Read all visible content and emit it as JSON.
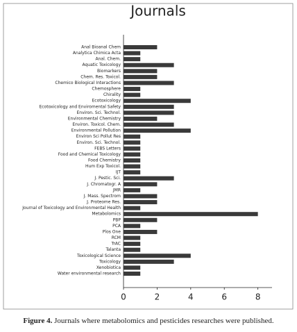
{
  "chart_data": {
    "type": "bar",
    "orientation": "horizontal",
    "title": "Journals",
    "categories": [
      "Anal Bioanal Chem",
      "Analytica Chimica Acta",
      "Anal. Chem.",
      "Aquatic Toxicology",
      "Biomarkers",
      "Chem. Res. Toxicol.",
      "Chemico  Biological Interactions",
      "Chemosphere",
      "Chirality",
      "Ecotoxicology",
      "Ecotoxicology and Enviromental Safety",
      "Environ. Sci. Technol.",
      "Environmental Chemistry",
      "Environ. Toxicol. Chem.",
      "Environmental Pollution",
      "Environ Sci Pollut Res",
      "Environ. Sci. Technol.",
      "FEBS Letters",
      "Food and Chemical Toxicology",
      "Food Chemistry",
      "Hum Exp Toxicol.",
      "IJT",
      "J. Pestic. Sci.",
      "J. Chromatogr. A",
      "JMR",
      "J. Mass. Spectrom",
      "J. Proteome Res.",
      "Journal of Toxicology and Environmental Health",
      "Metabolomics",
      "PBP",
      "PCA",
      "Plos One",
      "RCM",
      "TrAC",
      "Talanta",
      "Toxicological Science",
      "Toxicology",
      "Xenobiotica",
      "Water environmental research"
    ],
    "values": [
      2,
      1,
      1,
      3,
      2,
      2,
      3,
      1,
      1,
      4,
      3,
      3,
      2,
      3,
      4,
      1,
      1,
      1,
      1,
      1,
      1,
      1,
      3,
      2,
      1,
      2,
      2,
      1,
      8,
      2,
      1,
      2,
      1,
      1,
      1,
      4,
      3,
      1,
      1
    ],
    "color": "#3a3a3a",
    "xlim": [
      0,
      8.8
    ],
    "xticks": [
      0,
      2,
      4,
      6,
      8
    ]
  },
  "caption": {
    "label": "Figure 4.",
    "text": "Journals where metabolomics and pesticides researches were published."
  }
}
